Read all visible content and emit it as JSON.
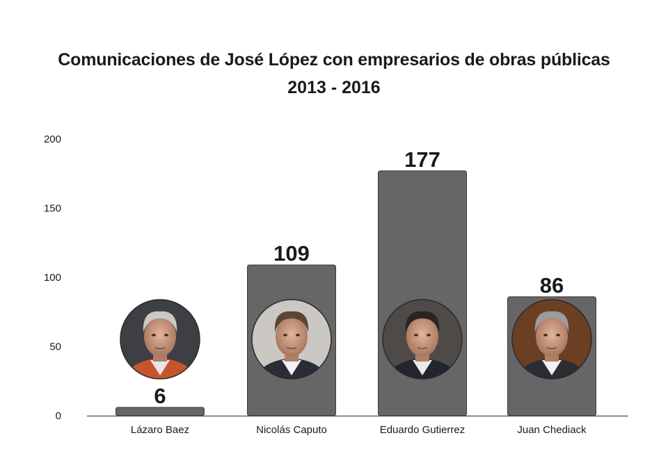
{
  "chart_data": {
    "type": "bar",
    "title": "Comunicaciones de José López con empresarios de obras públicas",
    "subtitle": "2013 - 2016",
    "categories": [
      "Lázaro Baez",
      "Nicolás Caputo",
      "Eduardo Gutierrez",
      "Juan Chediack"
    ],
    "values": [
      6,
      109,
      177,
      86
    ],
    "data_labels": [
      "6",
      "109",
      "177",
      "86"
    ],
    "yticks": [
      "0",
      "50",
      "100",
      "150",
      "200"
    ],
    "ylim": [
      0,
      200
    ],
    "xlabel": "",
    "ylabel": "",
    "grid": false,
    "legend": "none",
    "bar_color": "#666666",
    "portraits": [
      "portrait-lazaro-baez",
      "portrait-nicolas-caputo",
      "portrait-eduardo-gutierrez",
      "portrait-juan-chediack"
    ]
  }
}
